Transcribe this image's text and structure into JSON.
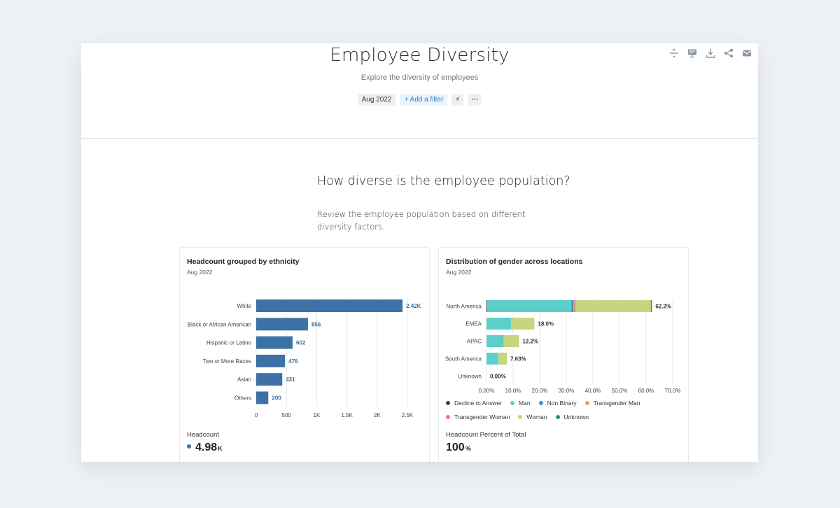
{
  "header": {
    "title": "Employee Diversity",
    "subtitle": "Explore the diversity of employees",
    "filters": {
      "date": "Aug 2022",
      "add_filter": "+ Add a filter",
      "bolt": "⚡",
      "more": "···"
    }
  },
  "toolbar": {
    "icons": [
      "collapse-icon",
      "present-icon",
      "download-icon",
      "share-icon",
      "email-icon"
    ]
  },
  "section": {
    "title": "How diverse is the employee population?",
    "description": "Review the employee population based on different diversity factors."
  },
  "panels": {
    "ethnicity": {
      "title": "Headcount grouped by ethnicity",
      "subtitle": "Aug 2022",
      "kpi_label": "Headcount",
      "kpi_value": "4.98",
      "kpi_unit": "K"
    },
    "gender": {
      "title": "Distribution of gender across locations",
      "subtitle": "Aug 2022",
      "kpi_label": "Headcount Percent of Total",
      "kpi_value": "100",
      "kpi_unit": "%"
    }
  },
  "chart_data": [
    {
      "type": "bar",
      "orientation": "horizontal",
      "title": "Headcount grouped by ethnicity",
      "categories": [
        "White",
        "Black or African American",
        "Hispanic or Latino",
        "Two or More Races",
        "Asian",
        "Others"
      ],
      "values": [
        2420,
        856,
        602,
        476,
        431,
        200
      ],
      "data_labels": [
        "2.42K",
        "856",
        "602",
        "476",
        "431",
        "200"
      ],
      "xlim": [
        0,
        2500
      ],
      "xticks": [
        "0",
        "500",
        "1K",
        "1.5K",
        "2K",
        "2.5K"
      ],
      "color": "#3c72a5",
      "label_color": "#3c72a5"
    },
    {
      "type": "bar",
      "orientation": "horizontal",
      "stacked": true,
      "title": "Distribution of gender across locations",
      "categories": [
        "North America",
        "EMEA",
        "APAC",
        "South America",
        "Unknown"
      ],
      "totals": [
        "62.2%",
        "18.0%",
        "12.2%",
        "7.63%",
        "0.00%"
      ],
      "xlim": [
        0,
        70
      ],
      "xticks": [
        "0.00%",
        "10.0%",
        "20.0%",
        "30.0%",
        "40.0%",
        "50.0%",
        "60.0%",
        "70.0%"
      ],
      "series": [
        {
          "name": "Decline to Answer",
          "color": "#1f4e79",
          "values": [
            0.3,
            0,
            0,
            0,
            0
          ]
        },
        {
          "name": "Man",
          "color": "#5dcfc9",
          "values": [
            31.6,
            9.3,
            6.5,
            4.4,
            0
          ]
        },
        {
          "name": "Non Binary",
          "color": "#2b9bd7",
          "values": [
            0.8,
            0,
            0,
            0,
            0
          ]
        },
        {
          "name": "Transgender Man",
          "color": "#f0a33c",
          "values": [
            0.3,
            0,
            0,
            0,
            0
          ]
        },
        {
          "name": "Transgender Woman",
          "color": "#ee7b6a",
          "values": [
            0.5,
            0,
            0,
            0,
            0
          ]
        },
        {
          "name": "Woman",
          "color": "#c4d67f",
          "values": [
            28.3,
            8.7,
            5.7,
            3.23,
            0
          ]
        },
        {
          "name": "Unknown",
          "color": "#3f8f55",
          "values": [
            0.4,
            0,
            0,
            0,
            0
          ]
        }
      ]
    }
  ]
}
